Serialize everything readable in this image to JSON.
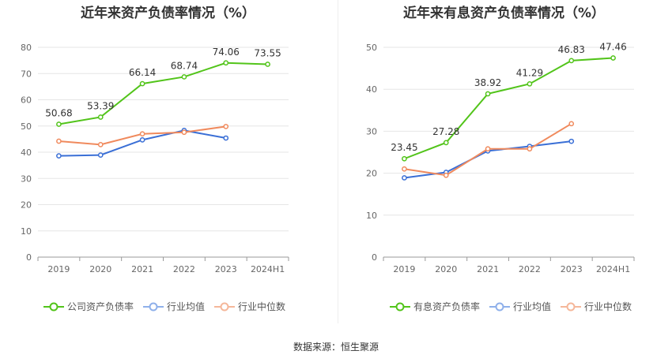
{
  "footer": "数据来源：恒生聚源",
  "chart_data": [
    {
      "type": "line",
      "title": "近年来资产负债率情况（%）",
      "categories": [
        "2019",
        "2020",
        "2021",
        "2022",
        "2023",
        "2024H1"
      ],
      "ylim": [
        0,
        80
      ],
      "yticks": [
        0,
        10,
        20,
        30,
        40,
        50,
        60,
        70,
        80
      ],
      "grid": true,
      "legend_position": "bottom",
      "series": [
        {
          "name": "公司资产负债率",
          "color": "#52c41a",
          "values": [
            50.68,
            53.39,
            66.14,
            68.74,
            74.06,
            73.55
          ],
          "labels": [
            "50.68",
            "53.39",
            "66.14",
            "68.74",
            "74.06",
            "73.55"
          ]
        },
        {
          "name": "行业均值",
          "color": "#3a6fd6",
          "values": [
            38.6,
            38.9,
            44.7,
            48.3,
            45.4,
            null
          ]
        },
        {
          "name": "行业中位数",
          "color": "#f08a5d",
          "values": [
            44.2,
            42.9,
            47.0,
            47.6,
            49.8,
            null
          ]
        }
      ]
    },
    {
      "type": "line",
      "title": "近年来有息资产负债率情况（%）",
      "categories": [
        "2019",
        "2020",
        "2021",
        "2022",
        "2023",
        "2024H1"
      ],
      "ylim": [
        0,
        50
      ],
      "yticks": [
        0,
        10,
        20,
        30,
        40,
        50
      ],
      "grid": true,
      "legend_position": "bottom",
      "series": [
        {
          "name": "有息资产负债率",
          "color": "#52c41a",
          "values": [
            23.45,
            27.28,
            38.92,
            41.29,
            46.83,
            47.46
          ],
          "labels": [
            "23.45",
            "27.28",
            "38.92",
            "41.29",
            "46.83",
            "47.46"
          ]
        },
        {
          "name": "行业均值",
          "color": "#3a6fd6",
          "values": [
            18.9,
            20.2,
            25.3,
            26.4,
            27.6,
            null
          ]
        },
        {
          "name": "行业中位数",
          "color": "#f08a5d",
          "values": [
            21.0,
            19.5,
            25.8,
            25.8,
            31.8,
            null
          ]
        }
      ]
    }
  ]
}
